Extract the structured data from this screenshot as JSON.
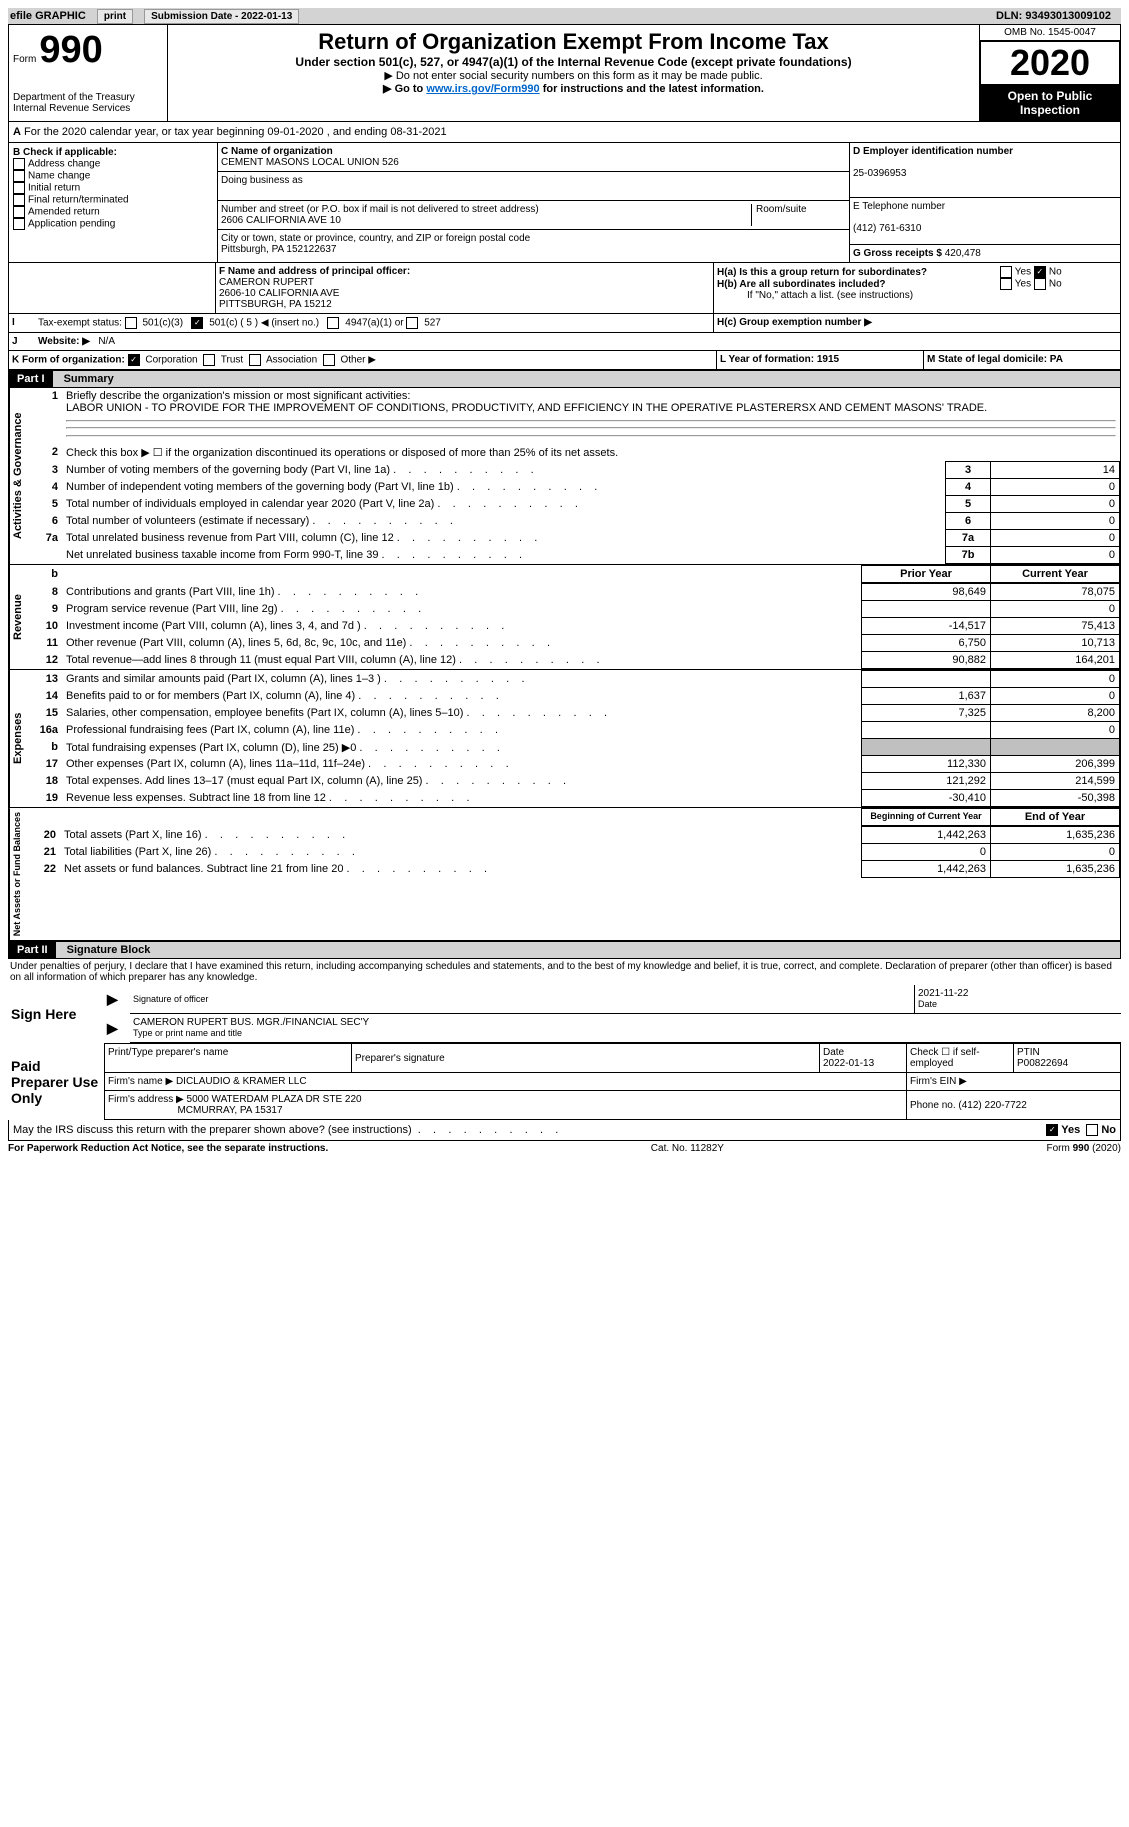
{
  "topbar": {
    "efile": "efile GRAPHIC",
    "print": "print",
    "sub_label": "Submission Date - 2022-01-13",
    "dln_label": "DLN: 93493013009102"
  },
  "header": {
    "form_word": "Form",
    "form_num": "990",
    "dept": "Department of the Treasury",
    "irs": "Internal Revenue Services",
    "title": "Return of Organization Exempt From Income Tax",
    "subtitle": "Under section 501(c), 527, or 4947(a)(1) of the Internal Revenue Code (except private foundations)",
    "note1": "▶ Do not enter social security numbers on this form as it may be made public.",
    "note2_pre": "▶ Go to ",
    "note2_link": "www.irs.gov/Form990",
    "note2_post": " for instructions and the latest information.",
    "omb": "OMB No. 1545-0047",
    "year": "2020",
    "open": "Open to Public Inspection"
  },
  "sectionA": "For the 2020 calendar year, or tax year beginning 09-01-2020   , and ending 08-31-2021",
  "colB": {
    "label": "B Check if applicable:",
    "items": [
      "Address change",
      "Name change",
      "Initial return",
      "Final return/terminated",
      "Amended return",
      "Application pending"
    ]
  },
  "colC": {
    "c_label": "C Name of organization",
    "org": "CEMENT MASONS LOCAL UNION 526",
    "dba_label": "Doing business as",
    "dba": "",
    "addr_label": "Number and street (or P.O. box if mail is not delivered to street address)",
    "room_label": "Room/suite",
    "addr": "2606 CALIFORNIA AVE 10",
    "city_label": "City or town, state or province, country, and ZIP or foreign postal code",
    "city": "Pittsburgh, PA  152122637",
    "f_label": "F Name and address of principal officer:",
    "f_name": "CAMERON RUPERT",
    "f_addr1": "2606-10 CALIFORNIA AVE",
    "f_addr2": "PITTSBURGH, PA  15212"
  },
  "colD": {
    "d_label": "D Employer identification number",
    "ein": "25-0396953",
    "e_label": "E Telephone number",
    "phone": "(412) 761-6310",
    "g_label": "G Gross receipts $",
    "g_val": "420,478"
  },
  "h": {
    "ha_label": "H(a)  Is this a group return for subordinates?",
    "hb_label": "H(b)  Are all subordinates included?",
    "hb_note": "If \"No,\" attach a list. (see instructions)",
    "hc_label": "H(c)  Group exemption number ▶",
    "yes": "Yes",
    "no": "No"
  },
  "i": {
    "label": "Tax-exempt status:",
    "c3": "501(c)(3)",
    "c": "501(c) ( 5 ) ◀ (insert no.)",
    "a1": "4947(a)(1) or",
    "s527": "527"
  },
  "j": {
    "label": "Website: ▶",
    "val": "N/A"
  },
  "k": {
    "label": "K Form of organization:",
    "corp": "Corporation",
    "trust": "Trust",
    "assoc": "Association",
    "other": "Other ▶"
  },
  "l": {
    "label": "L Year of formation: 1915"
  },
  "m": {
    "label": "M State of legal domicile: PA"
  },
  "part1": {
    "num": "Part I",
    "title": "Summary"
  },
  "p1": {
    "q1": "Briefly describe the organization's mission or most significant activities:",
    "a1": "LABOR UNION - TO PROVIDE FOR THE IMPROVEMENT OF CONDITIONS, PRODUCTIVITY, AND EFFICIENCY IN THE OPERATIVE PLASTERERSX AND CEMENT MASONS' TRADE.",
    "q2": "Check this box ▶ ☐  if the organization discontinued its operations or disposed of more than 25% of its net assets.",
    "lines": [
      {
        "n": "3",
        "t": "Number of voting members of the governing body (Part VI, line 1a)",
        "b": "3",
        "v": "14"
      },
      {
        "n": "4",
        "t": "Number of independent voting members of the governing body (Part VI, line 1b)",
        "b": "4",
        "v": "0"
      },
      {
        "n": "5",
        "t": "Total number of individuals employed in calendar year 2020 (Part V, line 2a)",
        "b": "5",
        "v": "0"
      },
      {
        "n": "6",
        "t": "Total number of volunteers (estimate if necessary)",
        "b": "6",
        "v": "0"
      },
      {
        "n": "7a",
        "t": "Total unrelated business revenue from Part VIII, column (C), line 12",
        "b": "7a",
        "v": "0"
      },
      {
        "n": "",
        "t": "Net unrelated business taxable income from Form 990-T, line 39",
        "b": "7b",
        "v": "0"
      }
    ],
    "prior": "Prior Year",
    "current": "Current Year",
    "rev": [
      {
        "n": "8",
        "t": "Contributions and grants (Part VIII, line 1h)",
        "p": "98,649",
        "c": "78,075"
      },
      {
        "n": "9",
        "t": "Program service revenue (Part VIII, line 2g)",
        "p": "",
        "c": "0"
      },
      {
        "n": "10",
        "t": "Investment income (Part VIII, column (A), lines 3, 4, and 7d )",
        "p": "-14,517",
        "c": "75,413"
      },
      {
        "n": "11",
        "t": "Other revenue (Part VIII, column (A), lines 5, 6d, 8c, 9c, 10c, and 11e)",
        "p": "6,750",
        "c": "10,713"
      },
      {
        "n": "12",
        "t": "Total revenue—add lines 8 through 11 (must equal Part VIII, column (A), line 12)",
        "p": "90,882",
        "c": "164,201"
      }
    ],
    "exp": [
      {
        "n": "13",
        "t": "Grants and similar amounts paid (Part IX, column (A), lines 1–3 )",
        "p": "",
        "c": "0"
      },
      {
        "n": "14",
        "t": "Benefits paid to or for members (Part IX, column (A), line 4)",
        "p": "1,637",
        "c": "0"
      },
      {
        "n": "15",
        "t": "Salaries, other compensation, employee benefits (Part IX, column (A), lines 5–10)",
        "p": "7,325",
        "c": "8,200"
      },
      {
        "n": "16a",
        "t": "Professional fundraising fees (Part IX, column (A), line 11e)",
        "p": "",
        "c": "0"
      },
      {
        "n": "b",
        "t": "Total fundraising expenses (Part IX, column (D), line 25) ▶0",
        "p": "shaded",
        "c": "shaded"
      },
      {
        "n": "17",
        "t": "Other expenses (Part IX, column (A), lines 11a–11d, 11f–24e)",
        "p": "112,330",
        "c": "206,399"
      },
      {
        "n": "18",
        "t": "Total expenses. Add lines 13–17 (must equal Part IX, column (A), line 25)",
        "p": "121,292",
        "c": "214,599"
      },
      {
        "n": "19",
        "t": "Revenue less expenses. Subtract line 18 from line 12",
        "p": "-30,410",
        "c": "-50,398"
      }
    ],
    "begin": "Beginning of Current Year",
    "end": "End of Year",
    "net": [
      {
        "n": "20",
        "t": "Total assets (Part X, line 16)",
        "p": "1,442,263",
        "c": "1,635,236"
      },
      {
        "n": "21",
        "t": "Total liabilities (Part X, line 26)",
        "p": "0",
        "c": "0"
      },
      {
        "n": "22",
        "t": "Net assets or fund balances. Subtract line 21 from line 20",
        "p": "1,442,263",
        "c": "1,635,236"
      }
    ]
  },
  "vert": {
    "gov": "Activities & Governance",
    "rev": "Revenue",
    "exp": "Expenses",
    "net": "Net Assets or Fund Balances"
  },
  "part2": {
    "num": "Part II",
    "title": "Signature Block"
  },
  "sig": {
    "penalty": "Under penalties of perjury, I declare that I have examined this return, including accompanying schedules and statements, and to the best of my knowledge and belief, it is true, correct, and complete. Declaration of preparer (other than officer) is based on all information of which preparer has any knowledge.",
    "sign_here": "Sign Here",
    "sig_officer": "Signature of officer",
    "date1": "2021-11-22",
    "date_label": "Date",
    "name": "CAMERON RUPERT BUS. MGR./FINANCIAL SEC'Y",
    "name_label": "Type or print name and title",
    "paid": "Paid Preparer Use Only",
    "print_label": "Print/Type preparer's name",
    "prep_sig": "Preparer's signature",
    "date2_label": "Date",
    "date2": "2022-01-13",
    "check_label": "Check ☐ if self-employed",
    "ptin_label": "PTIN",
    "ptin": "P00822694",
    "firm_name_label": "Firm's name    ▶",
    "firm_name": "DICLAUDIO & KRAMER LLC",
    "firm_ein_label": "Firm's EIN ▶",
    "firm_addr_label": "Firm's address ▶",
    "firm_addr1": "5000 WATERDAM PLAZA DR STE 220",
    "firm_addr2": "MCMURRAY, PA  15317",
    "firm_phone_label": "Phone no.",
    "firm_phone": "(412) 220-7722",
    "discuss": "May the IRS discuss this return with the preparer shown above? (see instructions)"
  },
  "footer": {
    "pra": "For Paperwork Reduction Act Notice, see the separate instructions.",
    "cat": "Cat. No. 11282Y",
    "form": "Form 990 (2020)"
  }
}
